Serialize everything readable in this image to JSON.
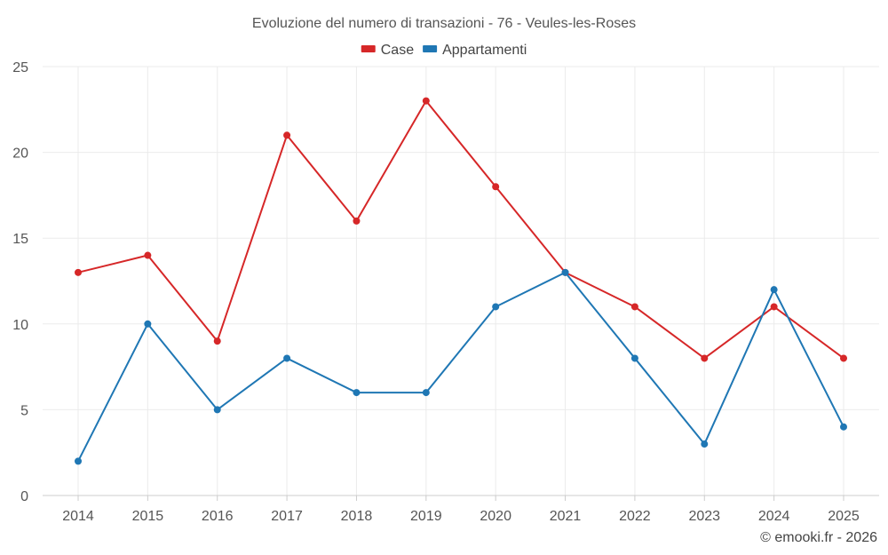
{
  "chart_data": {
    "type": "line",
    "title": "Evoluzione del numero di transazioni - 76 - Veules-les-Roses",
    "xlabel": "",
    "ylabel": "",
    "x": [
      "2014",
      "2015",
      "2016",
      "2017",
      "2018",
      "2019",
      "2020",
      "2021",
      "2022",
      "2023",
      "2024",
      "2025"
    ],
    "series": [
      {
        "name": "Case",
        "color": "#d62728",
        "values": [
          13,
          14,
          9,
          21,
          16,
          23,
          18,
          13,
          11,
          8,
          11,
          8
        ]
      },
      {
        "name": "Appartamenti",
        "color": "#1f77b4",
        "values": [
          2,
          10,
          5,
          8,
          6,
          6,
          11,
          13,
          8,
          3,
          12,
          4
        ]
      }
    ],
    "ylim": [
      0,
      25
    ],
    "yticks": [
      "0",
      "5",
      "10",
      "15",
      "20",
      "25"
    ],
    "grid": true,
    "legend_position": "top-center"
  },
  "credit": "© emooki.fr - 2026"
}
